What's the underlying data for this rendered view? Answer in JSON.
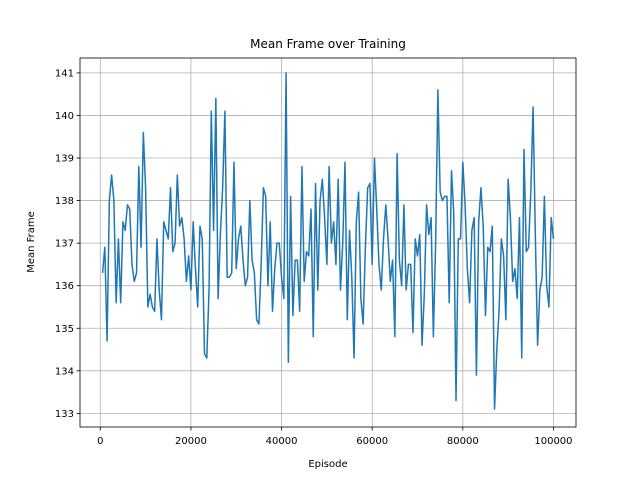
{
  "chart_data": {
    "type": "line",
    "title": "Mean Frame over Training",
    "x_label": "Episode",
    "y_label": "Mean Frame",
    "x_start": 500,
    "x_step": 500,
    "series": [
      {
        "name": "Mean Frame",
        "color": "#1f77b4",
        "values": [
          136.3,
          136.9,
          134.7,
          138,
          138.6,
          138,
          135.6,
          137.1,
          135.6,
          137.5,
          137.3,
          137.9,
          137.8,
          136.5,
          136.1,
          136.3,
          138.8,
          136.9,
          139.6,
          138.3,
          135.5,
          135.8,
          135.5,
          135.4,
          137.1,
          135.9,
          135.2,
          137.5,
          137.3,
          137.1,
          138.3,
          136.8,
          137.0,
          138.6,
          137.4,
          137.6,
          137.1,
          136.1,
          136.7,
          135.9,
          137.5,
          136.4,
          135.5,
          137.4,
          137.1,
          134.4,
          134.3,
          135.9,
          140.1,
          137.3,
          140.4,
          135.7,
          137.2,
          138.3,
          140.1,
          136.2,
          136.2,
          136.3,
          138.9,
          136.4,
          137.1,
          137.4,
          136.6,
          136.0,
          136.2,
          138.0,
          136.6,
          136.3,
          135.2,
          135.1,
          136.5,
          138.3,
          138.1,
          136.0,
          137.5,
          135.4,
          136.4,
          137.0,
          137.0,
          136.2,
          135.7,
          141.0,
          134.2,
          138.1,
          135.3,
          136.6,
          136.6,
          135.4,
          138.8,
          136.1,
          136.8,
          136.7,
          137.8,
          134.8,
          138.4,
          135.9,
          138.0,
          138.5,
          137.6,
          136.5,
          138.8,
          137.0,
          137.5,
          136.5,
          138.5,
          135.9,
          137.0,
          138.9,
          135.2,
          137.3,
          136.2,
          134.3,
          137.5,
          138.2,
          135.7,
          135.1,
          136.9,
          138.3,
          138.4,
          136.5,
          139.0,
          137.8,
          136.5,
          135.9,
          137.1,
          137.9,
          137.1,
          136.1,
          136.6,
          134.8,
          139.1,
          136.6,
          136.0,
          137.9,
          135.9,
          136.5,
          136.5,
          134.9,
          137.1,
          136.7,
          137.2,
          134.6,
          135.8,
          137.9,
          137.2,
          137.6,
          134.8,
          137.0,
          140.6,
          138.2,
          138.0,
          138.1,
          138.1,
          135.6,
          138.7,
          137.7,
          133.3,
          137.1,
          137.1,
          138.9,
          137.9,
          136.4,
          135.6,
          137.3,
          137.6,
          133.9,
          137.5,
          138.3,
          137.4,
          135.3,
          136.9,
          136.8,
          137.4,
          133.1,
          134.5,
          135.4,
          137.1,
          136.7,
          135.2,
          138.5,
          137.6,
          136.1,
          136.4,
          135.7,
          137.6,
          134.3,
          139.2,
          136.8,
          136.9,
          138.2,
          140.2,
          137.2,
          134.6,
          135.9,
          136.2,
          138.1,
          136.0,
          135.5,
          137.6,
          137.1
        ]
      }
    ],
    "xlim": [
      -4475,
      104975
    ],
    "xticks": [
      0,
      20000,
      40000,
      60000,
      80000,
      100000
    ],
    "ylim": [
      132.68,
      141.35
    ],
    "yticks": [
      133,
      134,
      135,
      136,
      137,
      138,
      139,
      140,
      141
    ],
    "grid": true
  }
}
